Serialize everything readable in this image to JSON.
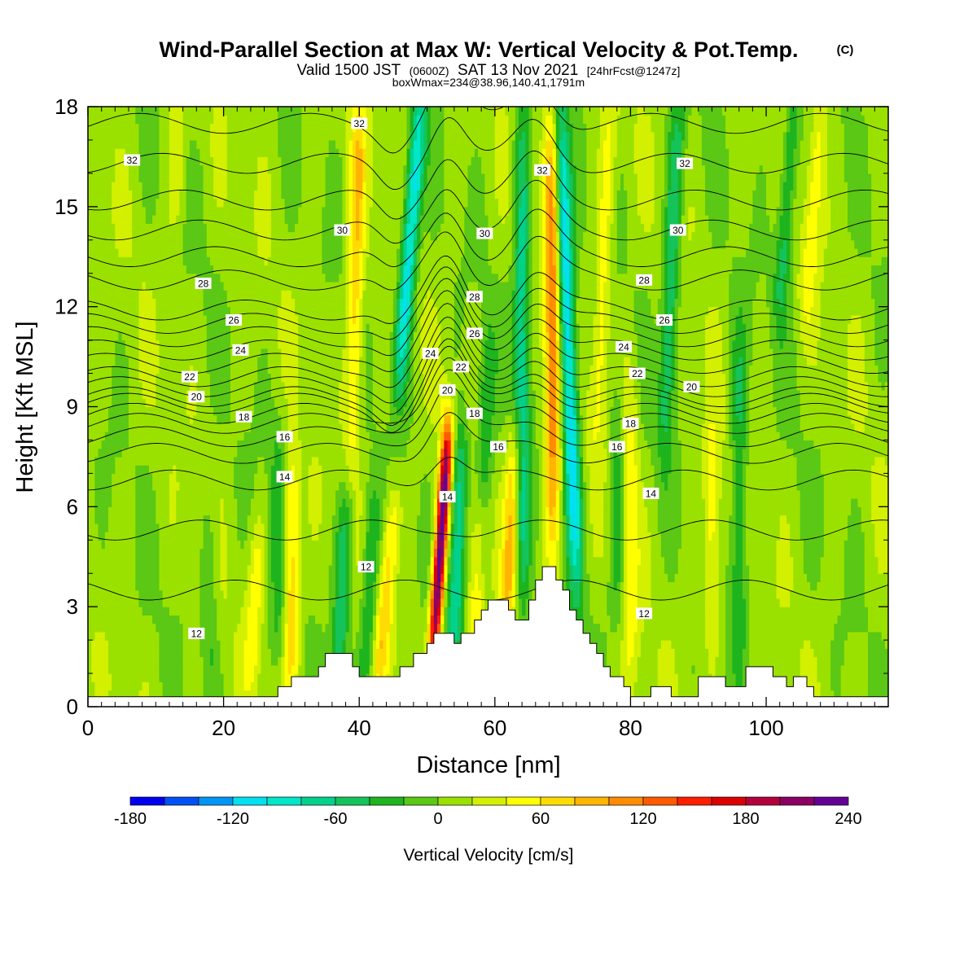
{
  "chart_data": {
    "type": "heatmap",
    "title": "Wind-Parallel Section at Max W: Vertical Velocity & Pot.Temp.",
    "title_mark": "(C)",
    "subtitle_valid": "Valid 1500 JST",
    "subtitle_zulu": "(0600Z)",
    "subtitle_date": "SAT 13 Nov 2021",
    "subtitle_fcst": "[24hrFcst@1247z]",
    "subtitle_box": "boxWmax=234@38.96,140.41,1791m",
    "xlabel": "Distance [nm]",
    "ylabel": "Height [Kft MSL]",
    "xlim": [
      0,
      118
    ],
    "ylim": [
      0,
      18
    ],
    "x_ticks": [
      0,
      20,
      40,
      60,
      80,
      100
    ],
    "y_ticks": [
      0,
      3,
      6,
      9,
      12,
      15,
      18
    ],
    "grid": false,
    "colorbar": {
      "title": "Vertical Velocity [cm/s]",
      "levels": [
        -180,
        -160,
        -140,
        -120,
        -100,
        -80,
        -60,
        -40,
        -20,
        0,
        20,
        40,
        60,
        80,
        100,
        120,
        140,
        160,
        180,
        200,
        220,
        240
      ],
      "tick_labels": [
        "-180",
        "-120",
        "-60",
        "0",
        "60",
        "120",
        "180",
        "240"
      ],
      "tick_values": [
        -180,
        -120,
        -60,
        0,
        60,
        120,
        180,
        240
      ],
      "colors": [
        "#0000f0",
        "#0050f5",
        "#0096f5",
        "#00e0f0",
        "#00e6c8",
        "#00d28c",
        "#14c45a",
        "#1eb41e",
        "#5ac814",
        "#9be100",
        "#d2f000",
        "#ffff00",
        "#ffdc00",
        "#ffb400",
        "#ff8c00",
        "#ff5a00",
        "#ff1e00",
        "#dc0000",
        "#b4003c",
        "#8c0064",
        "#640096"
      ]
    },
    "terrain": [
      [
        0,
        0.3
      ],
      [
        28,
        0.3
      ],
      [
        28,
        0.6
      ],
      [
        30,
        0.6
      ],
      [
        30,
        0.9
      ],
      [
        34,
        0.9
      ],
      [
        34,
        1.2
      ],
      [
        35,
        1.2
      ],
      [
        35,
        1.6
      ],
      [
        39,
        1.6
      ],
      [
        39,
        1.2
      ],
      [
        40,
        1.2
      ],
      [
        40,
        0.9
      ],
      [
        46,
        0.9
      ],
      [
        46,
        1.2
      ],
      [
        48,
        1.2
      ],
      [
        48,
        1.6
      ],
      [
        50,
        1.6
      ],
      [
        50,
        1.9
      ],
      [
        51,
        1.9
      ],
      [
        51,
        2.2
      ],
      [
        54,
        2.2
      ],
      [
        54,
        1.9
      ],
      [
        55,
        1.9
      ],
      [
        55,
        2.2
      ],
      [
        57,
        2.2
      ],
      [
        57,
        2.6
      ],
      [
        58,
        2.6
      ],
      [
        58,
        2.9
      ],
      [
        59,
        2.9
      ],
      [
        59,
        3.2
      ],
      [
        62,
        3.2
      ],
      [
        62,
        2.9
      ],
      [
        63,
        2.9
      ],
      [
        63,
        2.6
      ],
      [
        65,
        2.6
      ],
      [
        65,
        3.2
      ],
      [
        66,
        3.2
      ],
      [
        66,
        3.8
      ],
      [
        67,
        3.8
      ],
      [
        67,
        4.2
      ],
      [
        69,
        4.2
      ],
      [
        69,
        3.8
      ],
      [
        70,
        3.8
      ],
      [
        70,
        3.5
      ],
      [
        71,
        3.5
      ],
      [
        71,
        2.9
      ],
      [
        72,
        2.9
      ],
      [
        72,
        2.6
      ],
      [
        73,
        2.6
      ],
      [
        73,
        2.2
      ],
      [
        74,
        2.2
      ],
      [
        74,
        1.9
      ],
      [
        75,
        1.9
      ],
      [
        75,
        1.6
      ],
      [
        76,
        1.6
      ],
      [
        76,
        1.2
      ],
      [
        77,
        1.2
      ],
      [
        77,
        0.9
      ],
      [
        79,
        0.9
      ],
      [
        79,
        0.6
      ],
      [
        80,
        0.6
      ],
      [
        80,
        0.3
      ],
      [
        83,
        0.3
      ],
      [
        83,
        0.6
      ],
      [
        86,
        0.6
      ],
      [
        86,
        0.3
      ],
      [
        90,
        0.3
      ],
      [
        90,
        0.9
      ],
      [
        94,
        0.9
      ],
      [
        94,
        0.6
      ],
      [
        97,
        0.6
      ],
      [
        97,
        1.2
      ],
      [
        101,
        1.2
      ],
      [
        101,
        0.9
      ],
      [
        103,
        0.9
      ],
      [
        103,
        0.6
      ],
      [
        104,
        0.6
      ],
      [
        104,
        0.9
      ],
      [
        106,
        0.9
      ],
      [
        106,
        0.6
      ],
      [
        107,
        0.6
      ],
      [
        107,
        0.3
      ],
      [
        118,
        0.3
      ],
      [
        118,
        0
      ]
    ],
    "updrafts": [
      {
        "x0": 51,
        "x1": 53,
        "h0": 1.8,
        "h1": 8.0,
        "amp": 234
      },
      {
        "x0": 68.5,
        "x1": 68.5,
        "h0": 5,
        "h1": 18,
        "amp": 110
      },
      {
        "x0": 39,
        "x1": 40,
        "h0": 8,
        "h1": 18,
        "amp": 70
      },
      {
        "x0": 30,
        "x1": 30,
        "h0": 1,
        "h1": 7,
        "amp": 75
      },
      {
        "x0": 43,
        "x1": 45,
        "h0": 1,
        "h1": 6,
        "amp": 65
      },
      {
        "x0": 62,
        "x1": 63,
        "h0": 3,
        "h1": 8,
        "amp": 80
      },
      {
        "x0": 57,
        "x1": 58,
        "h0": 2,
        "h1": 6,
        "amp": 55
      },
      {
        "x0": 92,
        "x1": 92,
        "h0": 2,
        "h1": 8,
        "amp": 50
      },
      {
        "x0": 80,
        "x1": 80,
        "h0": 1,
        "h1": 10,
        "amp": 45
      },
      {
        "x0": 75,
        "x1": 77,
        "h0": 8,
        "h1": 18,
        "amp": 45
      },
      {
        "x0": 106,
        "x1": 108,
        "h0": 12,
        "h1": 18,
        "amp": 45
      },
      {
        "x0": 24,
        "x1": 25,
        "h0": 1,
        "h1": 5,
        "amp": 40
      },
      {
        "x0": 13,
        "x1": 13,
        "h0": 15,
        "h1": 18,
        "amp": 30
      }
    ],
    "downdrafts": [
      {
        "x0": 54,
        "x1": 55,
        "h0": 2,
        "h1": 8,
        "amp": -90
      },
      {
        "x0": 72,
        "x1": 69.5,
        "h0": 4,
        "h1": 18,
        "amp": -130
      },
      {
        "x0": 46,
        "x1": 49,
        "h0": 10,
        "h1": 18,
        "amp": -120
      },
      {
        "x0": 64,
        "x1": 64,
        "h0": 3,
        "h1": 18,
        "amp": -80
      },
      {
        "x0": 37,
        "x1": 38,
        "h0": 1,
        "h1": 6,
        "amp": -65
      },
      {
        "x0": 41,
        "x1": 42,
        "h0": 1,
        "h1": 6,
        "amp": -55
      },
      {
        "x0": 85,
        "x1": 87,
        "h0": 8,
        "h1": 18,
        "amp": -70
      },
      {
        "x0": 96,
        "x1": 96,
        "h0": 2,
        "h1": 11,
        "amp": -55
      },
      {
        "x0": 102,
        "x1": 104,
        "h0": 12,
        "h1": 18,
        "amp": -60
      },
      {
        "x0": 28,
        "x1": 28,
        "h0": 2,
        "h1": 8,
        "amp": -40
      },
      {
        "x0": 58,
        "x1": 59,
        "h0": 4,
        "h1": 11,
        "amp": -45
      },
      {
        "x0": 78,
        "x1": 78,
        "h0": 3,
        "h1": 9,
        "amp": -40
      },
      {
        "x0": 18,
        "x1": 18,
        "h0": 1,
        "h1": 6,
        "amp": -30
      }
    ],
    "theta_levels": [
      12,
      13,
      14,
      15,
      16,
      17,
      18,
      19,
      20,
      21,
      22,
      23,
      24,
      25,
      26,
      27,
      28,
      29,
      30,
      31,
      32,
      33
    ],
    "theta_level_heights": [
      3.5,
      5.3,
      6.8,
      7.6,
      8.1,
      8.5,
      8.8,
      9.1,
      9.3,
      9.6,
      9.9,
      10.3,
      10.7,
      11.1,
      11.5,
      11.9,
      12.8,
      13.5,
      14.3,
      15.2,
      16.3,
      17.5
    ],
    "contour_labels": [
      {
        "text": "32",
        "x": 6.5,
        "y": 16.4
      },
      {
        "text": "32",
        "x": 40,
        "y": 17.5
      },
      {
        "text": "32",
        "x": 67,
        "y": 16.1
      },
      {
        "text": "32",
        "x": 88,
        "y": 16.3
      },
      {
        "text": "30",
        "x": 37.5,
        "y": 14.3
      },
      {
        "text": "30",
        "x": 58.5,
        "y": 14.2
      },
      {
        "text": "30",
        "x": 87,
        "y": 14.3
      },
      {
        "text": "28",
        "x": 17,
        "y": 12.7
      },
      {
        "text": "28",
        "x": 57,
        "y": 12.3
      },
      {
        "text": "28",
        "x": 82,
        "y": 12.8
      },
      {
        "text": "26",
        "x": 21.5,
        "y": 11.6
      },
      {
        "text": "26",
        "x": 57,
        "y": 11.2
      },
      {
        "text": "26",
        "x": 85,
        "y": 11.6
      },
      {
        "text": "24",
        "x": 22.5,
        "y": 10.7
      },
      {
        "text": "24",
        "x": 50.5,
        "y": 10.6
      },
      {
        "text": "24",
        "x": 79,
        "y": 10.8
      },
      {
        "text": "22",
        "x": 15,
        "y": 9.9
      },
      {
        "text": "22",
        "x": 55,
        "y": 10.2
      },
      {
        "text": "22",
        "x": 81,
        "y": 10.0
      },
      {
        "text": "20",
        "x": 16,
        "y": 9.3
      },
      {
        "text": "20",
        "x": 53,
        "y": 9.5
      },
      {
        "text": "20",
        "x": 89,
        "y": 9.6
      },
      {
        "text": "18",
        "x": 23,
        "y": 8.7
      },
      {
        "text": "18",
        "x": 57,
        "y": 8.8
      },
      {
        "text": "18",
        "x": 80,
        "y": 8.5
      },
      {
        "text": "16",
        "x": 29,
        "y": 8.1
      },
      {
        "text": "16",
        "x": 60.5,
        "y": 7.8
      },
      {
        "text": "16",
        "x": 78,
        "y": 7.8
      },
      {
        "text": "14",
        "x": 29,
        "y": 6.9
      },
      {
        "text": "14",
        "x": 53,
        "y": 6.3
      },
      {
        "text": "14",
        "x": 83,
        "y": 6.4
      },
      {
        "text": "12",
        "x": 41,
        "y": 4.2
      },
      {
        "text": "12",
        "x": 16,
        "y": 2.2
      },
      {
        "text": "12",
        "x": 82,
        "y": 2.8
      }
    ]
  }
}
